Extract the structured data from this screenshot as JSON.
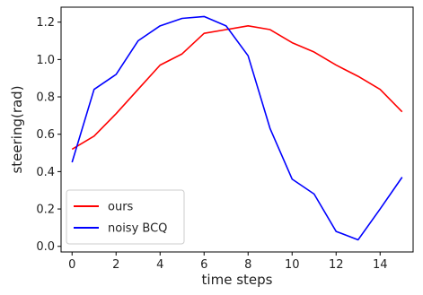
{
  "chart_data": {
    "type": "line",
    "title": "",
    "xlabel": "time steps",
    "ylabel": "steering(rad)",
    "xlim": [
      -0.5,
      15.5
    ],
    "ylim": [
      -0.03,
      1.28
    ],
    "x_ticks": [
      0,
      2,
      4,
      6,
      8,
      10,
      12,
      14
    ],
    "y_ticks": [
      0.0,
      0.2,
      0.4,
      0.6,
      0.8,
      1.0,
      1.2
    ],
    "x_tick_labels": [
      "0",
      "2",
      "4",
      "6",
      "8",
      "10",
      "12",
      "14"
    ],
    "y_tick_labels": [
      "0.0",
      "0.2",
      "0.4",
      "0.6",
      "0.8",
      "1.0",
      "1.2"
    ],
    "grid": false,
    "legend_position": "lower-left",
    "x": [
      0,
      1,
      2,
      3,
      4,
      5,
      6,
      7,
      8,
      9,
      10,
      11,
      12,
      13,
      14,
      15
    ],
    "series": [
      {
        "name": "ours",
        "color": "#ff0000",
        "values": [
          0.52,
          0.59,
          0.71,
          0.84,
          0.97,
          1.03,
          1.14,
          1.16,
          1.18,
          1.16,
          1.09,
          1.04,
          0.97,
          0.91,
          0.84,
          0.72
        ]
      },
      {
        "name": "noisy BCQ",
        "color": "#0000ff",
        "values": [
          0.45,
          0.84,
          0.92,
          1.1,
          1.18,
          1.22,
          1.23,
          1.18,
          1.02,
          0.63,
          0.36,
          0.28,
          0.08,
          0.035,
          0.2,
          0.37
        ]
      }
    ]
  }
}
